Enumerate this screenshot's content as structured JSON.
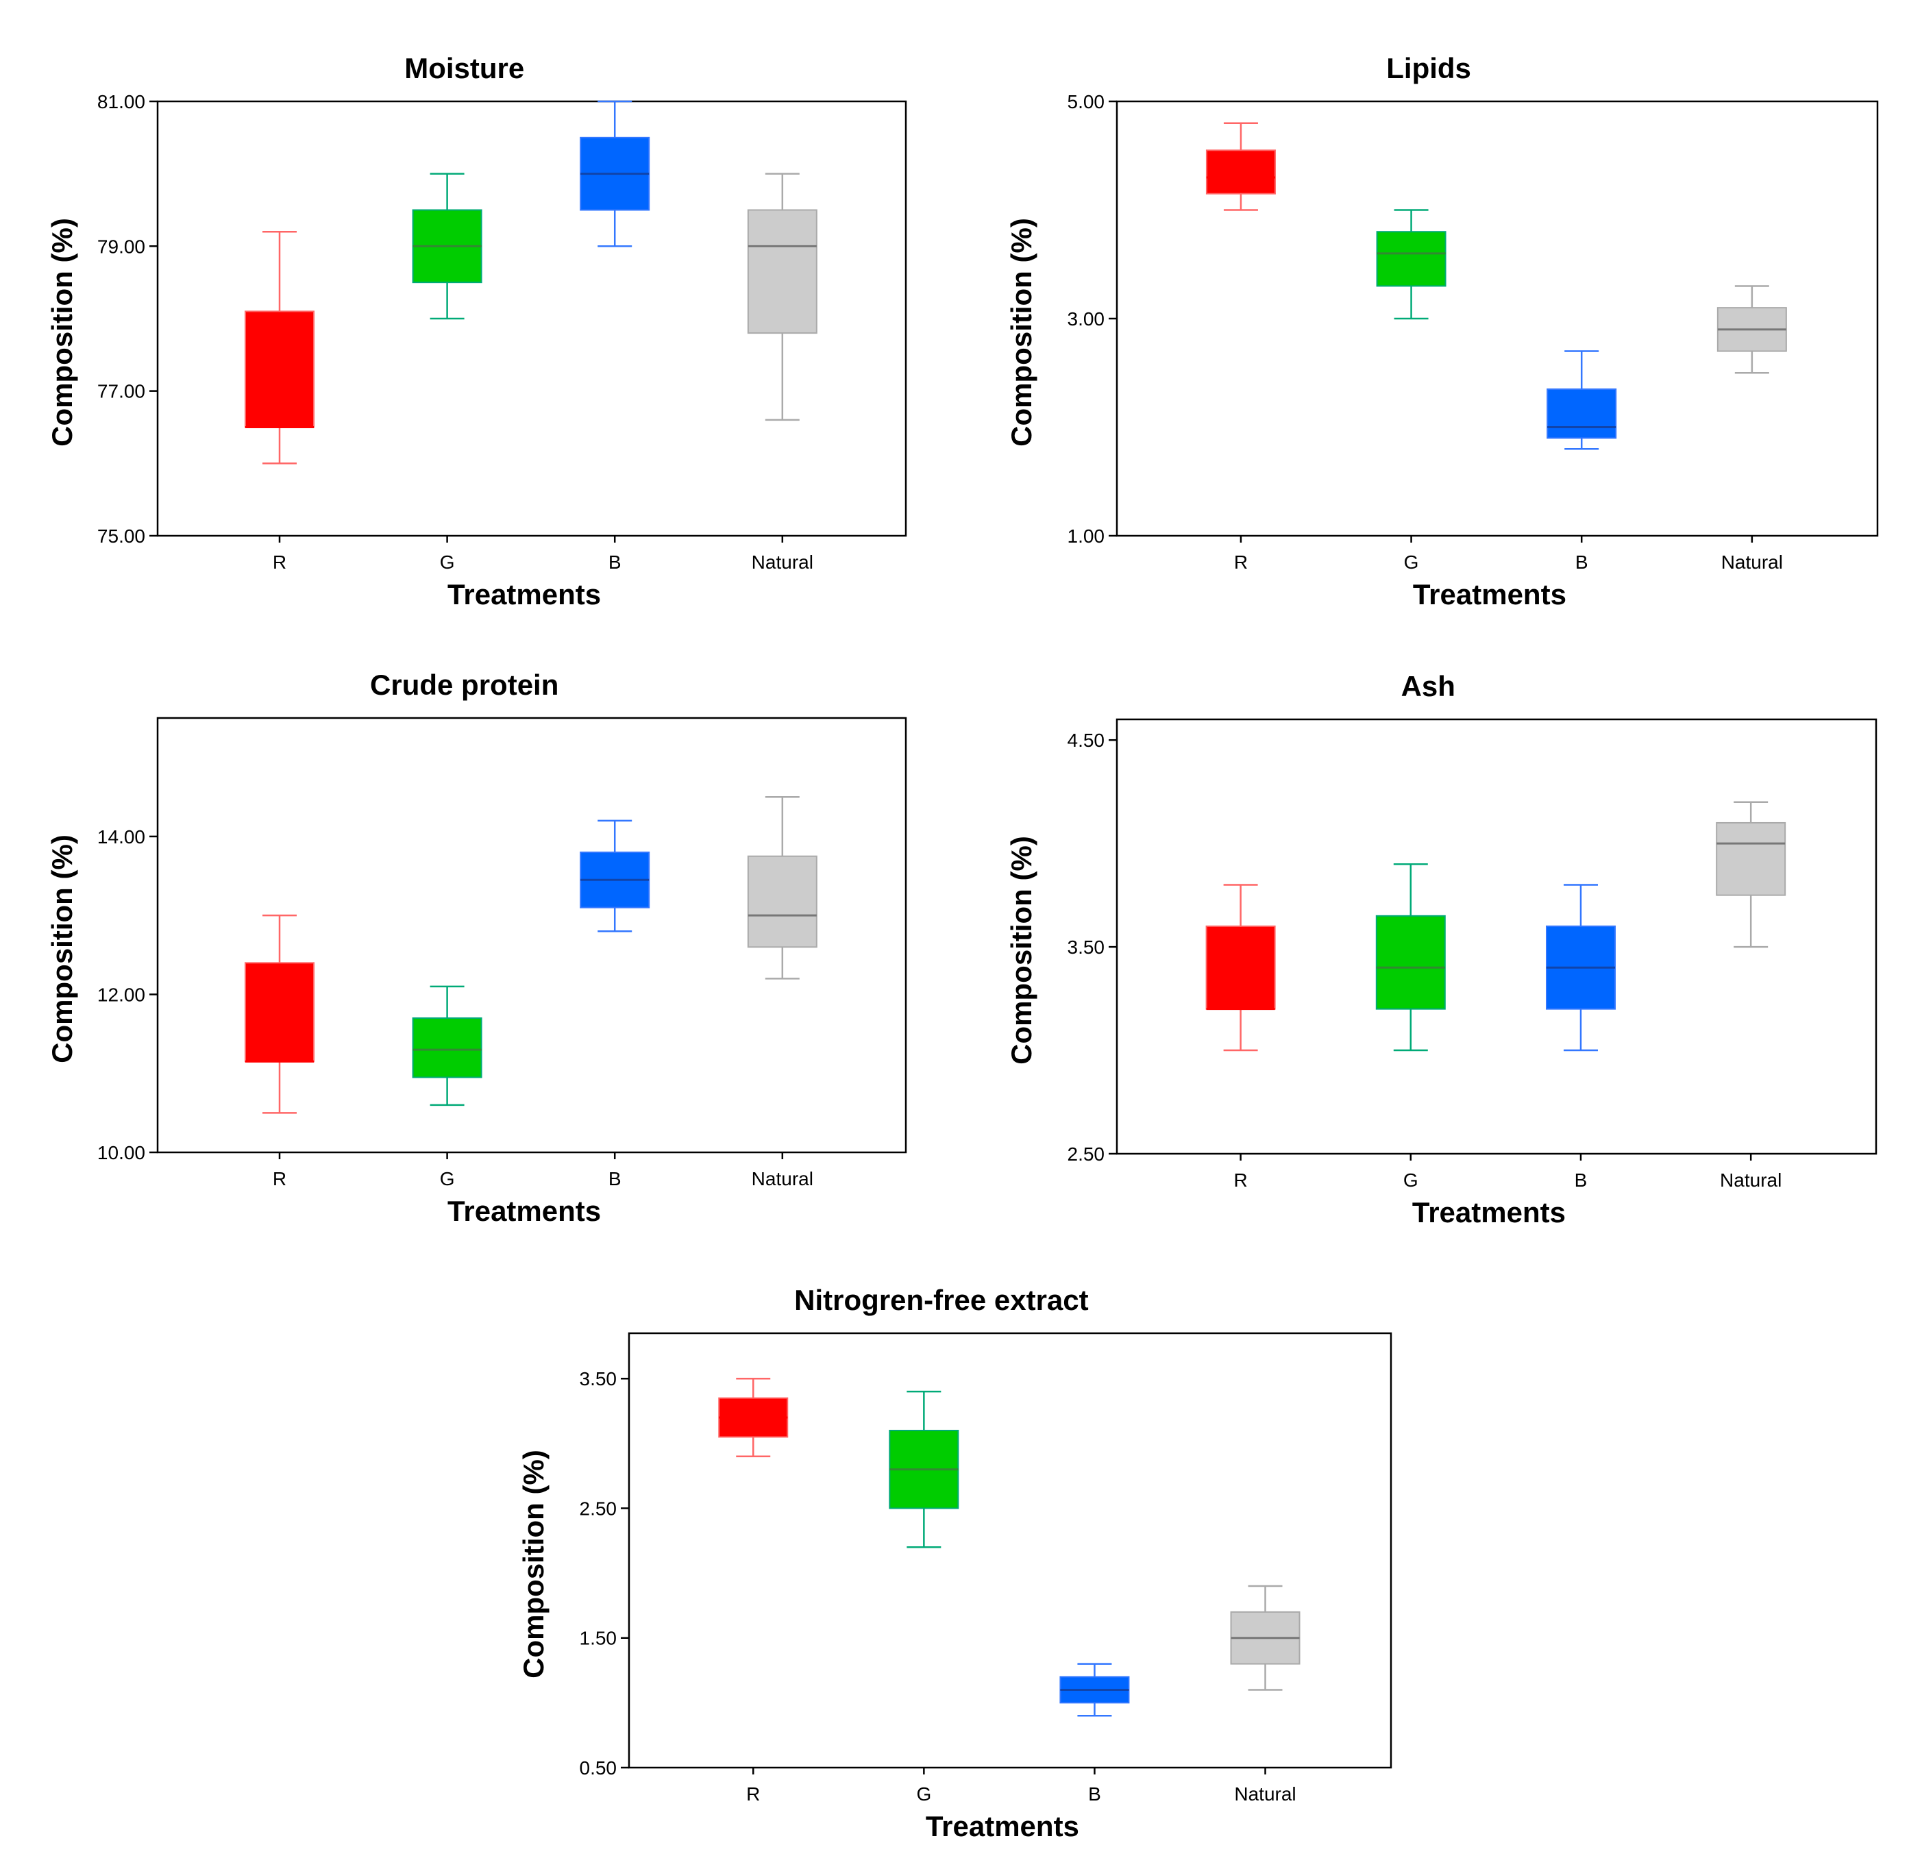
{
  "figure": {
    "ylabel": "Composition (%)",
    "xlabel": "Treatments"
  },
  "chart_data": [
    {
      "type": "box",
      "title": "Moisture",
      "xlabel": "Treatments",
      "ylabel": "Composition (%)",
      "ylim": [
        75,
        81
      ],
      "yticks": [
        75,
        77,
        79,
        81
      ],
      "yticklabels": [
        "75.00",
        "77.00",
        "79.00",
        "81.00"
      ],
      "categories": [
        "R",
        "G",
        "B",
        "Natural"
      ],
      "colors": [
        "#ff0000",
        "#00cc00",
        "#0066ff",
        "#cccccc"
      ],
      "whisker_colors": [
        "#ff6666",
        "#00aa77",
        "#3377ff",
        "#aaaaaa"
      ],
      "median_colors": [
        "#ff0000",
        "#338833",
        "#1144aa",
        "#777777"
      ],
      "boxes": [
        {
          "whislo": 76.0,
          "q1": 76.5,
          "med": 76.5,
          "q3": 78.1,
          "whishi": 79.2
        },
        {
          "whislo": 78.0,
          "q1": 78.5,
          "med": 79.0,
          "q3": 79.5,
          "whishi": 80.0
        },
        {
          "whislo": 79.0,
          "q1": 79.5,
          "med": 80.0,
          "q3": 80.5,
          "whishi": 81.0
        },
        {
          "whislo": 76.6,
          "q1": 77.8,
          "med": 79.0,
          "q3": 79.5,
          "whishi": 80.0
        }
      ]
    },
    {
      "type": "box",
      "title": "Lipids",
      "xlabel": "Treatments",
      "ylabel": "Composition (%)",
      "ylim": [
        1,
        5
      ],
      "yticks": [
        1,
        3,
        5
      ],
      "yticklabels": [
        "1.00",
        "3.00",
        "5.00"
      ],
      "categories": [
        "R",
        "G",
        "B",
        "Natural"
      ],
      "colors": [
        "#ff0000",
        "#00cc00",
        "#0066ff",
        "#cccccc"
      ],
      "whisker_colors": [
        "#ff6666",
        "#00aa77",
        "#3377ff",
        "#aaaaaa"
      ],
      "median_colors": [
        "#ff0000",
        "#338833",
        "#1144aa",
        "#777777"
      ],
      "boxes": [
        {
          "whislo": 4.0,
          "q1": 4.15,
          "med": 4.3,
          "q3": 4.55,
          "whishi": 4.8
        },
        {
          "whislo": 3.0,
          "q1": 3.3,
          "med": 3.6,
          "q3": 3.8,
          "whishi": 4.0
        },
        {
          "whislo": 1.8,
          "q1": 1.9,
          "med": 2.0,
          "q3": 2.35,
          "whishi": 2.7
        },
        {
          "whislo": 2.5,
          "q1": 2.7,
          "med": 2.9,
          "q3": 3.1,
          "whishi": 3.3
        }
      ]
    },
    {
      "type": "box",
      "title": "Crude protein",
      "xlabel": "Treatments",
      "ylabel": "Composition (%)",
      "ylim": [
        10,
        15.5
      ],
      "yticks": [
        10,
        12,
        14
      ],
      "yticklabels": [
        "10.00",
        "12.00",
        "14.00"
      ],
      "categories": [
        "R",
        "G",
        "B",
        "Natural"
      ],
      "colors": [
        "#ff0000",
        "#00cc00",
        "#0066ff",
        "#cccccc"
      ],
      "whisker_colors": [
        "#ff6666",
        "#00aa77",
        "#3377ff",
        "#aaaaaa"
      ],
      "median_colors": [
        "#ff0000",
        "#338833",
        "#1144aa",
        "#777777"
      ],
      "boxes": [
        {
          "whislo": 10.5,
          "q1": 11.15,
          "med": 11.15,
          "q3": 12.4,
          "whishi": 13.0
        },
        {
          "whislo": 10.6,
          "q1": 10.95,
          "med": 11.3,
          "q3": 11.7,
          "whishi": 12.1
        },
        {
          "whislo": 12.8,
          "q1": 13.1,
          "med": 13.45,
          "q3": 13.8,
          "whishi": 14.2
        },
        {
          "whislo": 12.2,
          "q1": 12.6,
          "med": 13.0,
          "q3": 13.75,
          "whishi": 14.5
        }
      ]
    },
    {
      "type": "box",
      "title": "Ash",
      "xlabel": "Treatments",
      "ylabel": "Composition (%)",
      "ylim": [
        2.5,
        4.6
      ],
      "yticks": [
        2.5,
        3.5,
        4.5
      ],
      "yticklabels": [
        "2.50",
        "3.50",
        "4.50"
      ],
      "categories": [
        "R",
        "G",
        "B",
        "Natural"
      ],
      "colors": [
        "#ff0000",
        "#00cc00",
        "#0066ff",
        "#cccccc"
      ],
      "whisker_colors": [
        "#ff6666",
        "#00aa77",
        "#3377ff",
        "#aaaaaa"
      ],
      "median_colors": [
        "#ff0000",
        "#338833",
        "#1144aa",
        "#777777"
      ],
      "boxes": [
        {
          "whislo": 3.0,
          "q1": 3.2,
          "med": 3.2,
          "q3": 3.6,
          "whishi": 3.8
        },
        {
          "whislo": 3.0,
          "q1": 3.2,
          "med": 3.4,
          "q3": 3.65,
          "whishi": 3.9
        },
        {
          "whislo": 3.0,
          "q1": 3.2,
          "med": 3.4,
          "q3": 3.6,
          "whishi": 3.8
        },
        {
          "whislo": 3.5,
          "q1": 3.75,
          "med": 4.0,
          "q3": 4.1,
          "whishi": 4.2
        }
      ]
    },
    {
      "type": "box",
      "title": "Nitrogren-free extract",
      "xlabel": "Treatments",
      "ylabel": "Composition (%)",
      "ylim": [
        0.5,
        3.85
      ],
      "yticks": [
        0.5,
        1.5,
        2.5,
        3.5
      ],
      "yticklabels": [
        "0.50",
        "1.50",
        "2.50",
        "3.50"
      ],
      "categories": [
        "R",
        "G",
        "B",
        "Natural"
      ],
      "colors": [
        "#ff0000",
        "#00cc00",
        "#0066ff",
        "#cccccc"
      ],
      "whisker_colors": [
        "#ff6666",
        "#00aa77",
        "#3377ff",
        "#aaaaaa"
      ],
      "median_colors": [
        "#ff0000",
        "#338833",
        "#1144aa",
        "#777777"
      ],
      "boxes": [
        {
          "whislo": 2.9,
          "q1": 3.05,
          "med": 3.2,
          "q3": 3.35,
          "whishi": 3.5
        },
        {
          "whislo": 2.2,
          "q1": 2.5,
          "med": 2.8,
          "q3": 3.1,
          "whishi": 3.4
        },
        {
          "whislo": 0.9,
          "q1": 1.0,
          "med": 1.1,
          "q3": 1.2,
          "whishi": 1.3
        },
        {
          "whislo": 1.1,
          "q1": 1.3,
          "med": 1.5,
          "q3": 1.7,
          "whishi": 1.9
        }
      ]
    }
  ]
}
